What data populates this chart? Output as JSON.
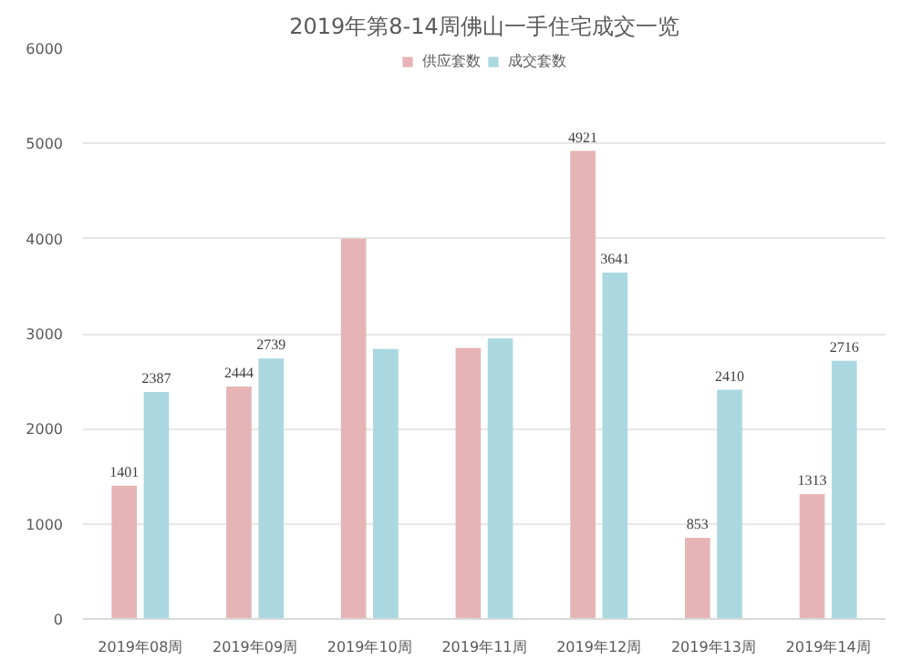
{
  "chart_data": {
    "type": "bar",
    "title": "2019年第8-14周佛山一手住宅成交一览",
    "categories": [
      "2019年08周",
      "2019年09周",
      "2019年10周",
      "2019年11周",
      "2019年12周",
      "2019年13周",
      "2019年14周"
    ],
    "series": [
      {
        "name": "供应套数",
        "color": "#e6b4b4",
        "values": [
          1401,
          2444,
          4000,
          2850,
          4921,
          853,
          1313
        ],
        "value_labels": [
          "1401",
          "2444",
          null,
          null,
          "4921",
          "853",
          "1313"
        ]
      },
      {
        "name": "成交套数",
        "color": "#abd8e0",
        "values": [
          2387,
          2739,
          2840,
          2950,
          3641,
          2410,
          2716
        ],
        "value_labels": [
          "2387",
          "2739",
          null,
          null,
          "3641",
          "2410",
          "2716"
        ]
      }
    ],
    "ylim": [
      0,
      6000
    ],
    "yticks": [
      0,
      1000,
      2000,
      3000,
      4000,
      5000,
      6000
    ],
    "grid": "y",
    "legend": "top"
  }
}
